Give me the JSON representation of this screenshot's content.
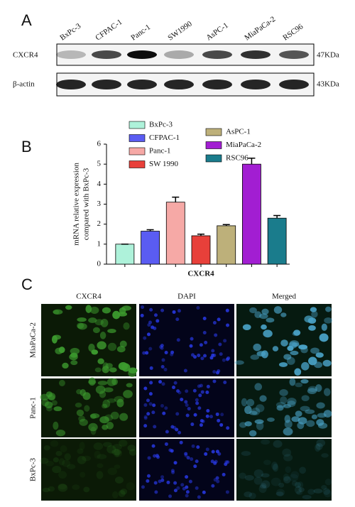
{
  "panel_a": {
    "label": "A",
    "lanes": [
      "BxPc-3",
      "CFPAC-1",
      "Panc-1",
      "SW1990",
      "AsPC-1",
      "MiaPaCa-2",
      "RSC96"
    ],
    "rows": [
      {
        "name": "CXCR4",
        "size": "47KDa"
      },
      {
        "name": "β-actin",
        "size": "43KDa"
      }
    ]
  },
  "chart_data": {
    "type": "bar",
    "panel_label": "B",
    "ylabel": [
      "mRNA relative expression",
      "compared with BxPc-3"
    ],
    "xlabel": "CXCR4",
    "categories": [
      "BxPc-3",
      "CFPAC-1",
      "Panc-1",
      "SW 1990",
      "AsPC-1",
      "MiaPaCa-2",
      "RSC96"
    ],
    "values": [
      1,
      1.65,
      3.1,
      1.42,
      1.92,
      5.0,
      2.3
    ],
    "errors": [
      0,
      0.07,
      0.25,
      0.08,
      0.06,
      0.3,
      0.13
    ],
    "colors": [
      "#aef2da",
      "#5a5cf2",
      "#f6a9a6",
      "#e8403a",
      "#bdb07a",
      "#a21ed2",
      "#1a7c8c"
    ],
    "ylim": [
      0,
      6
    ],
    "yticks": [
      0,
      1,
      2,
      3,
      4,
      5,
      6
    ]
  },
  "panel_c": {
    "label": "C",
    "columns": [
      "CXCR4",
      "DAPI",
      "Merged"
    ],
    "rows": [
      "MiaPaCa-2",
      "Panc-1",
      "BxPc-3"
    ]
  }
}
